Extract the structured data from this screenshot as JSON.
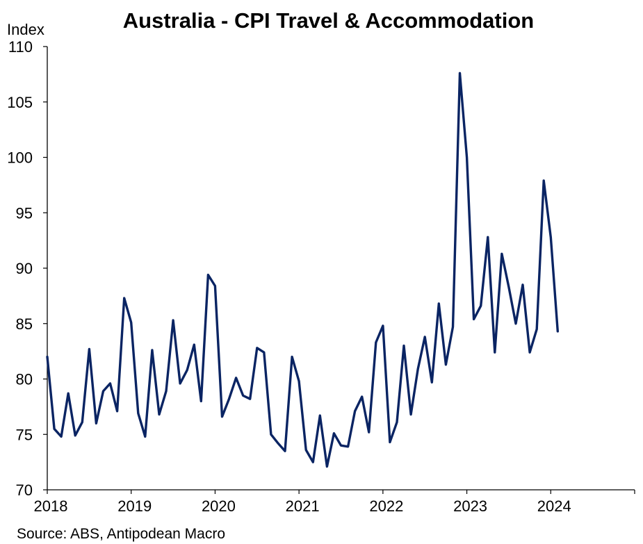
{
  "title": "Australia - CPI Travel & Accommodation",
  "source": "Source: ABS, Antipodean Macro",
  "chart_data": {
    "type": "line",
    "title": "Australia - CPI Travel & Accommodation",
    "ylabel": "Index",
    "xlabel": "",
    "xlim": [
      2018.0,
      2025.0
    ],
    "ylim": [
      70,
      110
    ],
    "yticks": [
      70,
      75,
      80,
      85,
      90,
      95,
      100,
      105,
      110
    ],
    "xticks": [
      2018,
      2019,
      2020,
      2021,
      2022,
      2023,
      2024
    ],
    "xtick_labels": [
      "2018",
      "2019",
      "2020",
      "2021",
      "2022",
      "2023",
      "2024"
    ],
    "grid": false,
    "line_color": "#0a2463",
    "series": [
      {
        "x": [
          "2018-01",
          "2018-02",
          "2018-03",
          "2018-04",
          "2018-05",
          "2018-06",
          "2018-07",
          "2018-08",
          "2018-09",
          "2018-10",
          "2018-11",
          "2018-12",
          "2019-01",
          "2019-02",
          "2019-03",
          "2019-04",
          "2019-05",
          "2019-06",
          "2019-07",
          "2019-08",
          "2019-09",
          "2019-10",
          "2019-11",
          "2019-12",
          "2020-01",
          "2020-02",
          "2020-03",
          "2020-04",
          "2020-05",
          "2020-06",
          "2020-07",
          "2020-08",
          "2020-09",
          "2020-10",
          "2020-11",
          "2020-12",
          "2021-01",
          "2021-02",
          "2021-03",
          "2021-04",
          "2021-05",
          "2021-06",
          "2021-07",
          "2021-08",
          "2021-09",
          "2021-10",
          "2021-11",
          "2021-12",
          "2022-01",
          "2022-02",
          "2022-03",
          "2022-04",
          "2022-05",
          "2022-06",
          "2022-07",
          "2022-08",
          "2022-09",
          "2022-10",
          "2022-11",
          "2022-12",
          "2023-01",
          "2023-02",
          "2023-03",
          "2023-04",
          "2023-05",
          "2023-06",
          "2023-07",
          "2023-08",
          "2023-09",
          "2023-10",
          "2023-11",
          "2023-12",
          "2024-01",
          "2024-02"
        ],
        "values": [
          82.0,
          75.5,
          74.8,
          78.7,
          74.9,
          76.1,
          82.7,
          76.0,
          78.9,
          79.6,
          77.1,
          87.3,
          85.1,
          76.9,
          74.8,
          82.6,
          76.8,
          78.9,
          85.3,
          79.6,
          80.8,
          83.1,
          78.0,
          89.4,
          88.4,
          76.6,
          78.2,
          80.1,
          78.5,
          78.2,
          82.8,
          82.4,
          75.0,
          74.2,
          73.5,
          82.0,
          79.8,
          73.6,
          72.5,
          76.7,
          72.1,
          75.1,
          74.0,
          73.9,
          77.1,
          78.4,
          75.2,
          83.3,
          84.8,
          74.3,
          76.1,
          83.0,
          76.8,
          80.9,
          83.8,
          79.7,
          86.8,
          81.3,
          84.7,
          107.6,
          100.0,
          85.4,
          86.6,
          92.8,
          82.4,
          91.3,
          88.3,
          85.0,
          88.5,
          82.4,
          84.5,
          97.9,
          92.8,
          84.3
        ]
      }
    ]
  }
}
